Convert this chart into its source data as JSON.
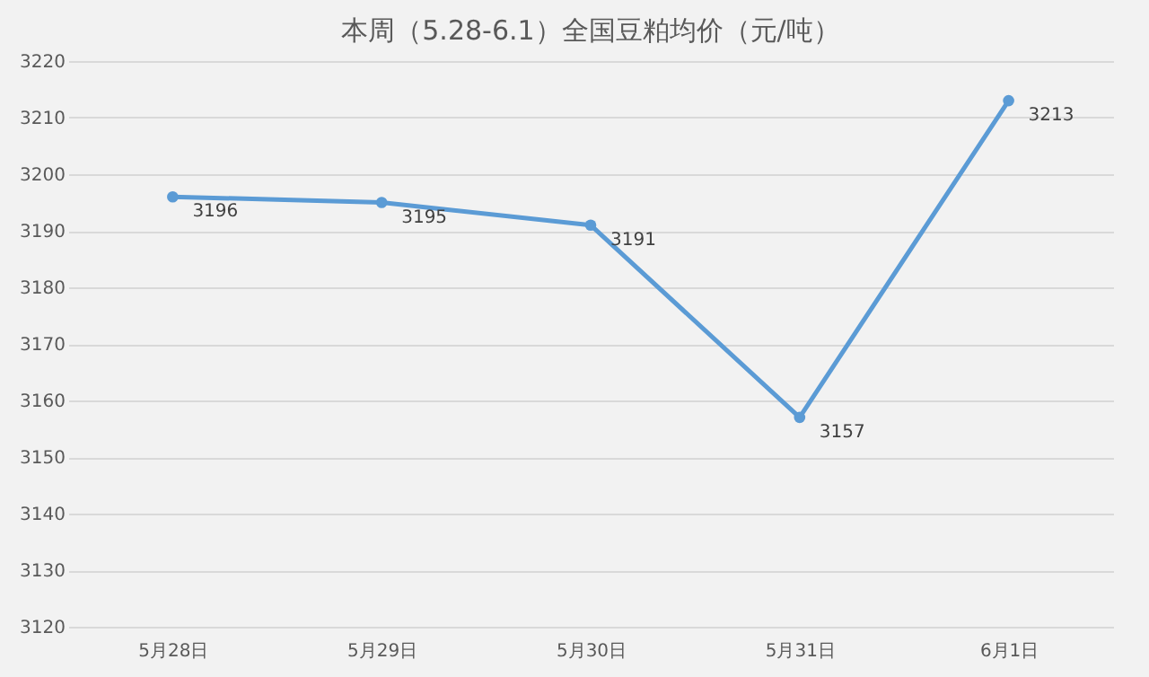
{
  "chart_data": {
    "type": "line",
    "title": "本周（5.28-6.1）全国豆粕均价（元/吨）",
    "categories": [
      "5月28日",
      "5月29日",
      "5月30日",
      "5月31日",
      "6月1日"
    ],
    "series": [
      {
        "color": "#5b9bd5",
        "values": [
          3196,
          3195,
          3191,
          3157,
          3213
        ]
      }
    ],
    "ylim": [
      3120,
      3220
    ],
    "yticks": [
      3120,
      3130,
      3140,
      3150,
      3160,
      3170,
      3180,
      3190,
      3200,
      3210,
      3220
    ],
    "grid": "y",
    "marker": "circle",
    "line_style": "solid",
    "data_labels": true,
    "legend": false
  }
}
